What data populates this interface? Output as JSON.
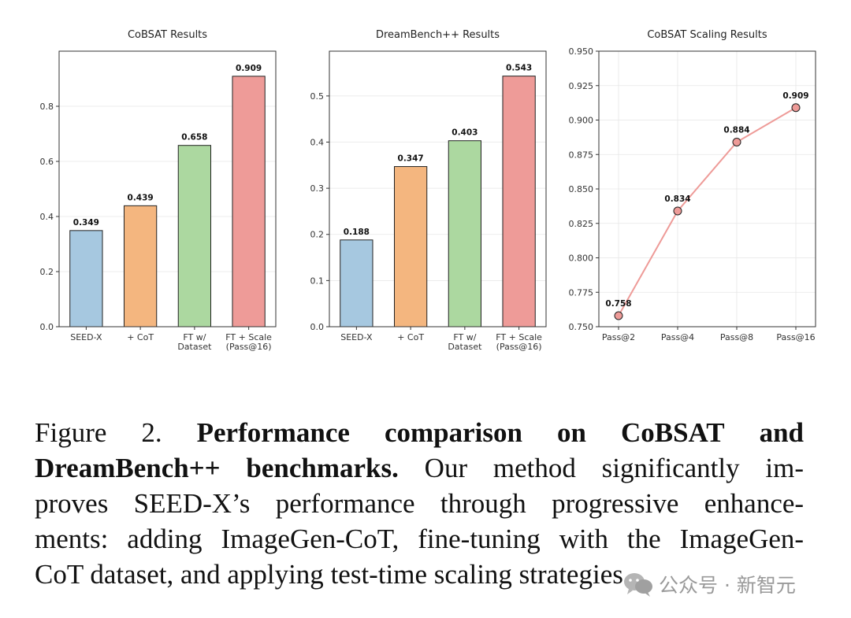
{
  "chart_data": [
    {
      "type": "bar",
      "title": "CoBSAT Results",
      "categories": [
        "SEED-X",
        "+ CoT",
        "FT w/\nDataset",
        "FT + Scale\n(Pass@16)"
      ],
      "values": [
        0.349,
        0.439,
        0.658,
        0.909
      ],
      "value_labels": [
        "0.349",
        "0.439",
        "0.658",
        "0.909"
      ],
      "colors": [
        "#a6c8e0",
        "#f4b67f",
        "#acd8a0",
        "#ee9b98"
      ],
      "ylim": [
        0,
        1.0
      ],
      "yticks": [
        0.0,
        0.2,
        0.4,
        0.6,
        0.8
      ],
      "ytick_labels": [
        "0.0",
        "0.2",
        "0.4",
        "0.6",
        "0.8"
      ],
      "xlabel": "",
      "ylabel": "",
      "grid": "horizontal"
    },
    {
      "type": "bar",
      "title": "DreamBench++ Results",
      "categories": [
        "SEED-X",
        "+ CoT",
        "FT w/\nDataset",
        "FT + Scale\n(Pass@16)"
      ],
      "values": [
        0.188,
        0.347,
        0.403,
        0.543
      ],
      "value_labels": [
        "0.188",
        "0.347",
        "0.403",
        "0.543"
      ],
      "colors": [
        "#a6c8e0",
        "#f4b67f",
        "#acd8a0",
        "#ee9b98"
      ],
      "ylim": [
        0,
        0.597
      ],
      "yticks": [
        0.0,
        0.1,
        0.2,
        0.3,
        0.4,
        0.5
      ],
      "ytick_labels": [
        "0.0",
        "0.1",
        "0.2",
        "0.3",
        "0.4",
        "0.5"
      ],
      "xlabel": "",
      "ylabel": "",
      "grid": "horizontal"
    },
    {
      "type": "line",
      "title": "CoBSAT Scaling Results",
      "categories": [
        "Pass@2",
        "Pass@4",
        "Pass@8",
        "Pass@16"
      ],
      "values": [
        0.758,
        0.834,
        0.884,
        0.909
      ],
      "value_labels": [
        "0.758",
        "0.834",
        "0.884",
        "0.909"
      ],
      "line_color": "#ee9b98",
      "marker_color": "#ee9b98",
      "ylim": [
        0.75,
        0.95
      ],
      "yticks": [
        0.75,
        0.775,
        0.8,
        0.825,
        0.85,
        0.875,
        0.9,
        0.925,
        0.95
      ],
      "ytick_labels": [
        "0.750",
        "0.775",
        "0.800",
        "0.825",
        "0.850",
        "0.875",
        "0.900",
        "0.925",
        "0.950"
      ],
      "xlabel": "",
      "ylabel": "",
      "grid": "both"
    }
  ],
  "caption": {
    "lines": [
      [
        {
          "t": "Figure 2.",
          "b": false
        },
        {
          "t": " ",
          "b": false
        },
        {
          "t": "Performance comparison on CoBSAT and",
          "b": true
        }
      ],
      [
        {
          "t": "DreamBench++ benchmarks.",
          "b": true
        },
        {
          "t": " Our method significantly im-",
          "b": false
        }
      ],
      [
        {
          "t": "proves SEED-X’s performance through progressive enhance-",
          "b": false
        }
      ],
      [
        {
          "t": "ments: adding ImageGen-CoT, fine-tuning with the ImageGen-",
          "b": false
        }
      ],
      [
        {
          "t": "CoT dataset, and applying test-time scaling strategies.",
          "b": false
        }
      ]
    ]
  },
  "watermark": {
    "text": "公众号 · 新智元",
    "icon": "wechat-icon"
  }
}
